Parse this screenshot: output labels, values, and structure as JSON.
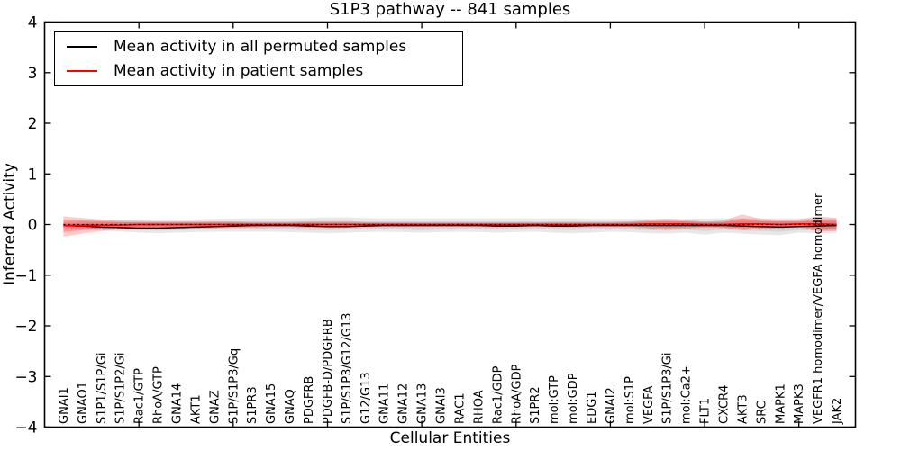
{
  "chart_data": {
    "type": "line",
    "title": "S1P3 pathway -- 841 samples",
    "xlabel": "Cellular Entities",
    "ylabel": "Inferred Activity",
    "xlim": [
      0,
      43
    ],
    "ylim": [
      -4,
      4
    ],
    "xticks": [
      5,
      10,
      15,
      20,
      25,
      30,
      35,
      40
    ],
    "yticks": {
      "values": [
        -4,
        -3,
        -2,
        -1,
        0,
        1,
        2,
        3,
        4
      ],
      "labels": [
        "−4",
        "−3",
        "−2",
        "−1",
        "0",
        "1",
        "2",
        "3",
        "4"
      ]
    },
    "grid": false,
    "legend_position": "upper-left",
    "legend": [
      {
        "label": "Mean activity in all permuted samples",
        "color": "#000000"
      },
      {
        "label": "Mean activity in patient samples",
        "color": "#ff0000"
      }
    ],
    "zero_line": {
      "value": 0,
      "style": "dashed",
      "color": "#000000"
    },
    "categories": [
      "GNAI1",
      "GNAO1",
      "S1P1/S1P/Gi",
      "S1P/S1P2/Gi",
      "Rac1/GTP",
      "RhoA/GTP",
      "GNA14",
      "AKT1",
      "GNAZ",
      "S1P/S1P3/Gq",
      "S1PR3",
      "GNA15",
      "GNAQ",
      "PDGFRB",
      "PDGFB-D/PDGFRB",
      "S1P/S1P3/G12/G13",
      "G12/G13",
      "GNA11",
      "GNA12",
      "GNA13",
      "GNAI3",
      "RAC1",
      "RHOA",
      "Rac1/GDP",
      "RhoA/GDP",
      "S1PR2",
      "mol:GTP",
      "mol:GDP",
      "EDG1",
      "GNAI2",
      "mol:S1P",
      "VEGFA",
      "S1P/S1P3/Gi",
      "mol:Ca2+",
      "FLT1",
      "CXCR4",
      "AKT3",
      "SRC",
      "MAPK1",
      "MAPK3",
      "VEGFR1 homodimer/VEGFA homodimer",
      "JAK2"
    ],
    "series": [
      {
        "name": "Mean activity in all permuted samples",
        "color": "#000000",
        "width": 1.4,
        "values": [
          -0.02,
          -0.03,
          -0.05,
          -0.06,
          -0.07,
          -0.07,
          -0.06,
          -0.05,
          -0.04,
          -0.03,
          -0.02,
          -0.02,
          -0.02,
          -0.03,
          -0.04,
          -0.04,
          -0.03,
          -0.02,
          -0.02,
          -0.02,
          -0.02,
          -0.02,
          -0.02,
          -0.03,
          -0.03,
          -0.02,
          -0.03,
          -0.03,
          -0.02,
          -0.02,
          -0.02,
          -0.02,
          -0.02,
          -0.02,
          -0.02,
          -0.02,
          -0.03,
          -0.04,
          -0.05,
          -0.04,
          -0.03,
          -0.02
        ]
      },
      {
        "name": "Mean activity in patient samples",
        "color": "#ff0000",
        "width": 1.8,
        "values": [
          -0.02,
          -0.01,
          -0.01,
          -0.01,
          0,
          0,
          0,
          0,
          0,
          0,
          0,
          0,
          0,
          0,
          0,
          0,
          0,
          0,
          0,
          0,
          0,
          0,
          0,
          0,
          0,
          0,
          0,
          0,
          0,
          0,
          0,
          0.01,
          0.01,
          0.01,
          0,
          0,
          0.01,
          0.01,
          0,
          0.01,
          0.01,
          0
        ]
      }
    ],
    "bands": [
      {
        "name": "permuted-outer",
        "color": "#7f7f7f",
        "opacity": 0.18,
        "hi": [
          0.05,
          0.07,
          0.08,
          0.09,
          0.1,
          0.1,
          0.1,
          0.1,
          0.11,
          0.12,
          0.12,
          0.12,
          0.12,
          0.13,
          0.14,
          0.14,
          0.13,
          0.12,
          0.12,
          0.12,
          0.12,
          0.12,
          0.12,
          0.12,
          0.12,
          0.12,
          0.12,
          0.12,
          0.11,
          0.11,
          0.11,
          0.11,
          0.11,
          0.11,
          0.12,
          0.12,
          0.12,
          0.12,
          0.12,
          0.12,
          0.12,
          0.12
        ],
        "lo": [
          -0.08,
          -0.1,
          -0.12,
          -0.14,
          -0.16,
          -0.17,
          -0.16,
          -0.15,
          -0.14,
          -0.14,
          -0.14,
          -0.14,
          -0.15,
          -0.16,
          -0.17,
          -0.16,
          -0.15,
          -0.14,
          -0.15,
          -0.16,
          -0.15,
          -0.14,
          -0.15,
          -0.16,
          -0.15,
          -0.14,
          -0.16,
          -0.17,
          -0.16,
          -0.14,
          -0.15,
          -0.17,
          -0.18,
          -0.16,
          -0.2,
          -0.16,
          -0.18,
          -0.2,
          -0.21,
          -0.16,
          -0.17,
          -0.16
        ]
      },
      {
        "name": "permuted-inner",
        "color": "#7f7f7f",
        "opacity": 0.18,
        "hi": [
          0.02,
          0.03,
          0.04,
          0.04,
          0.05,
          0.05,
          0.05,
          0.05,
          0.06,
          0.06,
          0.06,
          0.06,
          0.06,
          0.07,
          0.07,
          0.07,
          0.06,
          0.06,
          0.06,
          0.06,
          0.06,
          0.06,
          0.06,
          0.06,
          0.06,
          0.06,
          0.06,
          0.06,
          0.06,
          0.06,
          0.06,
          0.06,
          0.06,
          0.06,
          0.06,
          0.06,
          0.06,
          0.06,
          0.06,
          0.06,
          0.06,
          0.06
        ],
        "lo": [
          -0.05,
          -0.07,
          -0.08,
          -0.1,
          -0.11,
          -0.12,
          -0.11,
          -0.1,
          -0.09,
          -0.09,
          -0.09,
          -0.09,
          -0.1,
          -0.11,
          -0.11,
          -0.1,
          -0.1,
          -0.09,
          -0.1,
          -0.11,
          -0.1,
          -0.09,
          -0.1,
          -0.1,
          -0.1,
          -0.09,
          -0.1,
          -0.11,
          -0.1,
          -0.09,
          -0.1,
          -0.11,
          -0.12,
          -0.1,
          -0.13,
          -0.1,
          -0.12,
          -0.13,
          -0.14,
          -0.11,
          -0.12,
          -0.11
        ]
      },
      {
        "name": "patient-outer",
        "color": "#ff0000",
        "opacity": 0.2,
        "hi": [
          0.16,
          0.13,
          0.1,
          0.08,
          0.07,
          0.06,
          0.06,
          0.06,
          0.06,
          0.06,
          0.05,
          0.05,
          0.05,
          0.06,
          0.06,
          0.06,
          0.05,
          0.04,
          0.04,
          0.04,
          0.04,
          0.04,
          0.04,
          0.04,
          0.04,
          0.04,
          0.05,
          0.05,
          0.05,
          0.05,
          0.06,
          0.09,
          0.11,
          0.09,
          0.06,
          0.08,
          0.2,
          0.11,
          0.09,
          0.1,
          0.16,
          0.13
        ],
        "lo": [
          -0.24,
          -0.18,
          -0.13,
          -0.1,
          -0.09,
          -0.08,
          -0.08,
          -0.08,
          -0.07,
          -0.06,
          -0.06,
          -0.05,
          -0.05,
          -0.06,
          -0.06,
          -0.06,
          -0.05,
          -0.05,
          -0.05,
          -0.05,
          -0.04,
          -0.04,
          -0.05,
          -0.05,
          -0.04,
          -0.04,
          -0.05,
          -0.05,
          -0.05,
          -0.05,
          -0.05,
          -0.08,
          -0.1,
          -0.08,
          -0.06,
          -0.07,
          -0.11,
          -0.09,
          -0.08,
          -0.05,
          -0.14,
          -0.13
        ]
      },
      {
        "name": "patient-inner",
        "color": "#ff0000",
        "opacity": 0.25,
        "hi": [
          0.1,
          0.08,
          0.06,
          0.05,
          0.04,
          0.04,
          0.04,
          0.04,
          0.04,
          0.04,
          0.03,
          0.03,
          0.03,
          0.04,
          0.04,
          0.04,
          0.03,
          0.03,
          0.03,
          0.03,
          0.03,
          0.03,
          0.03,
          0.03,
          0.03,
          0.03,
          0.03,
          0.03,
          0.03,
          0.03,
          0.04,
          0.06,
          0.07,
          0.06,
          0.04,
          0.05,
          0.12,
          0.07,
          0.06,
          0.06,
          0.1,
          0.08
        ],
        "lo": [
          -0.15,
          -0.11,
          -0.08,
          -0.06,
          -0.06,
          -0.05,
          -0.05,
          -0.05,
          -0.04,
          -0.04,
          -0.04,
          -0.03,
          -0.03,
          -0.04,
          -0.04,
          -0.04,
          -0.03,
          -0.03,
          -0.03,
          -0.03,
          -0.03,
          -0.03,
          -0.03,
          -0.03,
          -0.03,
          -0.03,
          -0.03,
          -0.03,
          -0.03,
          -0.03,
          -0.03,
          -0.05,
          -0.06,
          -0.05,
          -0.04,
          -0.05,
          -0.07,
          -0.06,
          -0.05,
          -0.03,
          -0.09,
          -0.08
        ]
      }
    ]
  }
}
